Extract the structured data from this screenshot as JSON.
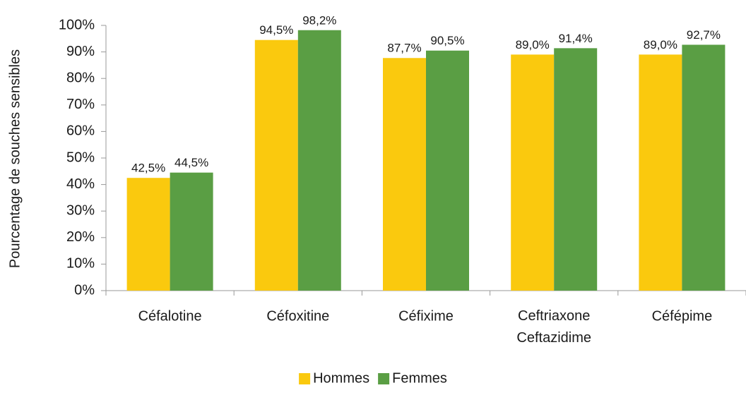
{
  "chart_data": {
    "type": "bar",
    "y_label": "Pourcentage de souches sensibles",
    "categories": [
      "Céfalotine",
      "Céfoxitine",
      "Céfixime",
      "Ceftriaxone Ceftazidime",
      "Céfépime"
    ],
    "series": [
      {
        "name": "Hommes",
        "color": "#fac90e",
        "values": [
          42.5,
          94.5,
          87.7,
          89.0,
          89.0
        ],
        "value_labels": [
          "42,5%",
          "94,5%",
          "87,7%",
          "89,0%",
          "89,0%"
        ]
      },
      {
        "name": "Femmes",
        "color": "#5a9e44",
        "values": [
          44.5,
          98.2,
          90.5,
          91.4,
          92.7
        ],
        "value_labels": [
          "44,5%",
          "98,2%",
          "90,5%",
          "91,4%",
          "92,7%"
        ]
      }
    ],
    "ylim": [
      0,
      100
    ],
    "yticks": [
      {
        "value": 0,
        "label": "0%"
      },
      {
        "value": 10,
        "label": "10%"
      },
      {
        "value": 20,
        "label": "20%"
      },
      {
        "value": 30,
        "label": "30%"
      },
      {
        "value": 40,
        "label": "40%"
      },
      {
        "value": 50,
        "label": "50%"
      },
      {
        "value": 60,
        "label": "60%"
      },
      {
        "value": 70,
        "label": "70%"
      },
      {
        "value": 80,
        "label": "80%"
      },
      {
        "value": 90,
        "label": "90%"
      },
      {
        "value": 100,
        "label": "100%"
      }
    ],
    "grid": false,
    "legend": "bottom"
  }
}
